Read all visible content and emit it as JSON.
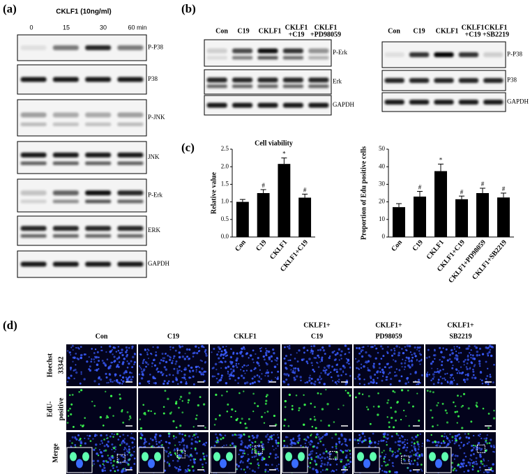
{
  "panel_labels": [
    "(a)",
    "(b)",
    "(c)",
    "(d)"
  ],
  "panel_a": {
    "treatment": "CKLF1 (10ng/ml)",
    "times": [
      "0",
      "15",
      "30",
      "60 min"
    ],
    "rows": [
      "P-P38",
      "P38",
      "P-JNK",
      "JNK",
      "P-Erk",
      "ERK",
      "GAPDH"
    ]
  },
  "panel_b": {
    "blots": [
      {
        "lanes": [
          [
            "Con"
          ],
          [
            "C19"
          ],
          [
            "CKLF1"
          ],
          [
            "CKLF1",
            "+C19"
          ],
          [
            "CKLF1",
            "+PD98059"
          ]
        ],
        "rows": [
          "P-Erk",
          "Erk",
          "GAPDH"
        ]
      },
      {
        "lanes": [
          [
            "Con"
          ],
          [
            "C19"
          ],
          [
            "CKLF1"
          ],
          [
            "CKLF1",
            "+C19"
          ],
          [
            "CKLF1",
            "+SB2219"
          ]
        ],
        "rows": [
          "P-P38",
          "P38",
          "GAPDH"
        ]
      }
    ]
  },
  "chart_data": [
    {
      "type": "bar",
      "title": "Cell viability",
      "y_label": "Relative value",
      "categories": [
        "Con",
        "C19",
        "CKLF1",
        "CKLF1+C19"
      ],
      "values": [
        1.0,
        1.25,
        2.08,
        1.12
      ],
      "errors": [
        0.07,
        0.1,
        0.17,
        0.1
      ],
      "markers": [
        null,
        "#",
        "*",
        "#"
      ],
      "color": "#000000",
      "ylim": [
        0,
        2.5
      ],
      "yticks": [
        {
          "value": 0,
          "label": "0.0"
        },
        0.5,
        {
          "value": 1,
          "label": "1.0"
        },
        1.5,
        {
          "value": 2,
          "label": "2.0"
        },
        2.5
      ]
    },
    {
      "type": "bar",
      "y_label": "Proportion of Edu positive cells",
      "categories": [
        "Con",
        "C19",
        "CKLF1",
        "CKLF1+C19",
        "CKLF1+PD98059",
        "CKLF1+SB2219"
      ],
      "values": [
        17,
        23,
        37.5,
        21.5,
        25,
        22.5
      ],
      "errors": [
        2,
        3,
        4,
        1.8,
        2.8,
        2.5
      ],
      "markers": [
        null,
        "#",
        "*",
        "#",
        "#",
        "#"
      ],
      "color": "#000000",
      "ylim": [
        0,
        50
      ],
      "yticks": [
        0,
        10,
        20,
        30,
        40,
        50
      ]
    }
  ],
  "panel_d": {
    "columns": [
      [
        "Con"
      ],
      [
        "C19"
      ],
      [
        "CKLF1"
      ],
      [
        "CKLF1+",
        "C19"
      ],
      [
        "CKLF1+",
        "PD98059"
      ],
      [
        "CKLF1+",
        "SB2219"
      ]
    ],
    "rows": [
      [
        "Hoechst",
        "33342"
      ],
      [
        "EdU-",
        "positive"
      ],
      [
        "Merge"
      ]
    ]
  }
}
